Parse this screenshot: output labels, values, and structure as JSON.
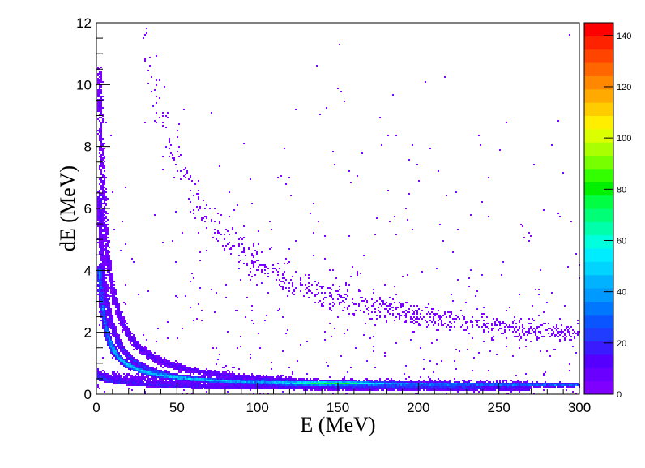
{
  "chart_data": {
    "type": "heatmap",
    "title": "",
    "xlabel": "E (MeV)",
    "ylabel": "dE (MeV)",
    "xlim": [
      0,
      300
    ],
    "ylim": [
      0,
      12
    ],
    "x_ticks": [
      "0",
      "50",
      "100",
      "150",
      "200",
      "250",
      "300"
    ],
    "y_ticks": [
      "0",
      "2",
      "4",
      "6",
      "8",
      "10",
      "12"
    ],
    "colorbar": {
      "range": [
        0,
        145
      ],
      "tick_labels": [
        "0",
        "20",
        "40",
        "60",
        "80",
        "100",
        "120",
        "140"
      ],
      "palette": [
        "#7f00ff",
        "#6a00ff",
        "#5500ff",
        "#3a1bff",
        "#1f3cff",
        "#0a55ff",
        "#0077ff",
        "#0099ff",
        "#00b2ff",
        "#00d4ff",
        "#00ecff",
        "#00ffdd",
        "#00ffaa",
        "#00ff77",
        "#00ff44",
        "#00f000",
        "#33ff00",
        "#77ff00",
        "#aaff00",
        "#dcff00",
        "#ffee00",
        "#ffcc00",
        "#ffaa00",
        "#ff8800",
        "#ff6600",
        "#ff4400",
        "#ff2200",
        "#ff0000"
      ]
    },
    "bands": [
      {
        "k": 15,
        "e0": 2,
        "c": 0.25,
        "xmax": 300,
        "width": 0.12,
        "intensity": "high"
      },
      {
        "k": 25,
        "e0": 2,
        "c": 0.1,
        "xmax": 240,
        "width": 0.1,
        "intensity": "medium"
      },
      {
        "k": 40,
        "e0": 2,
        "c": 0.12,
        "xmax": 200,
        "width": 0.15,
        "intensity": "low"
      },
      {
        "k": 350,
        "e0": 2,
        "c": 0.8,
        "xmax": 300,
        "width": 0.35,
        "intensity": "sparse"
      }
    ],
    "hotspot": {
      "x": [
        80,
        200
      ],
      "y": [
        0.25,
        0.45
      ],
      "peak_x": 145
    }
  }
}
